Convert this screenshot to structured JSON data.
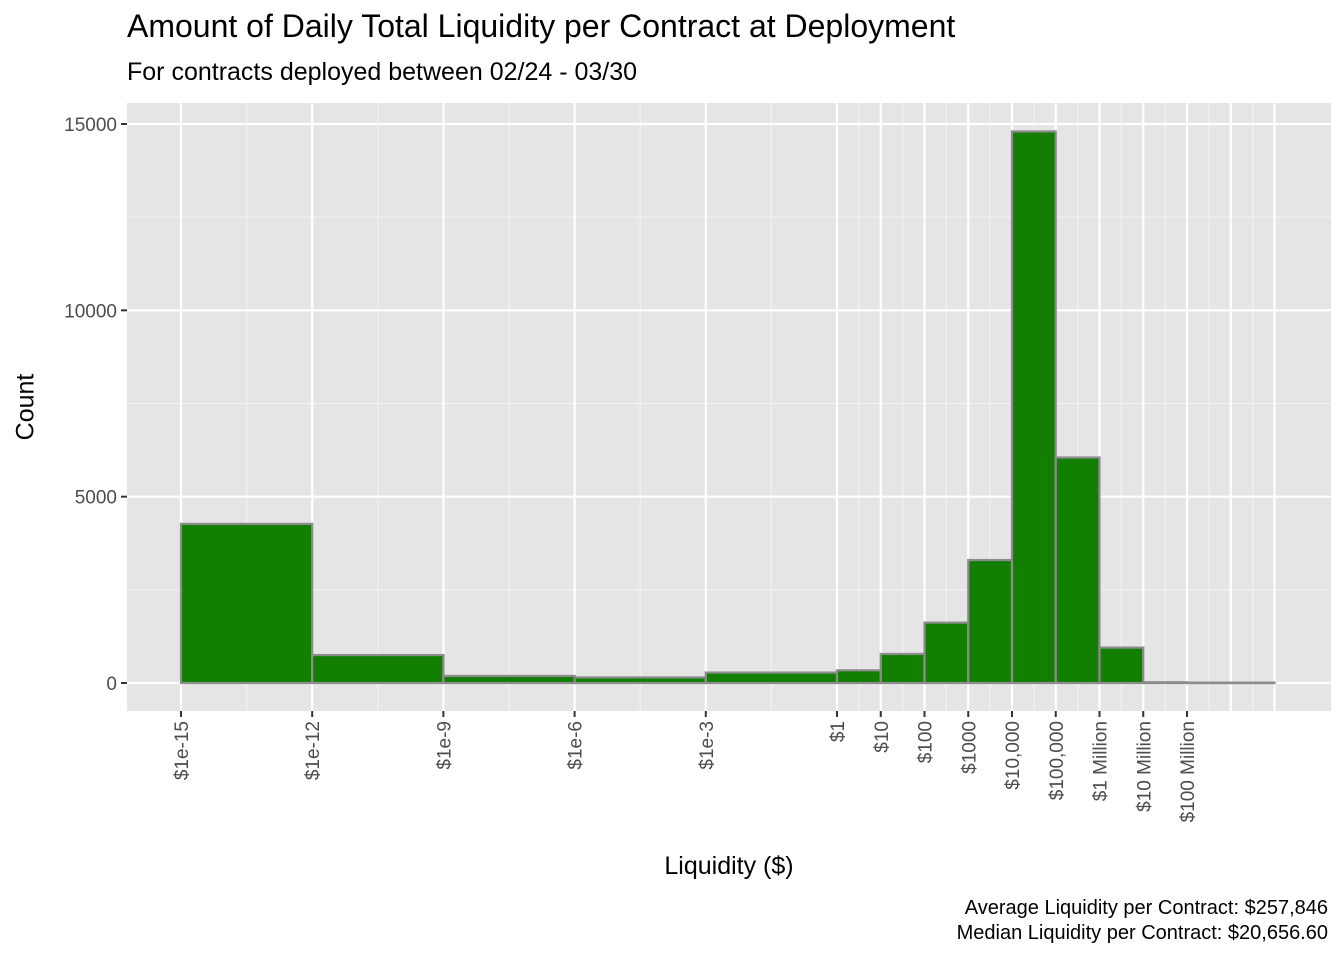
{
  "chart_data": {
    "type": "bar",
    "title": "Amount of Daily Total Liquidity per Contract at Deployment",
    "subtitle": "For contracts deployed between 02/24 - 03/30",
    "xlabel": "Liquidity ($)",
    "ylabel": "Count",
    "x_scale": "log10",
    "ylim": [
      -750,
      15500
    ],
    "y_ticks": [
      0,
      5000,
      10000,
      15000
    ],
    "y_tick_labels": [
      "0",
      "5000",
      "10000",
      "15000"
    ],
    "x_ticks": [
      -15,
      -12,
      -9,
      -6,
      -3,
      0,
      1,
      2,
      3,
      4,
      5,
      6,
      7,
      8
    ],
    "x_tick_labels": [
      "$1e-15",
      "$1e-12",
      "$1e-9",
      "$1e-6",
      "$1e-3",
      "$1",
      "$10",
      "$100",
      "$1000",
      "$10,000",
      "$100,000",
      "$1 Million",
      "$10 Million",
      "$100 Million"
    ],
    "bars": [
      {
        "from": -15,
        "to": -12,
        "value": 4270
      },
      {
        "from": -12,
        "to": -9,
        "value": 750
      },
      {
        "from": -9,
        "to": -6,
        "value": 190
      },
      {
        "from": -6,
        "to": -3,
        "value": 150
      },
      {
        "from": -3,
        "to": 0,
        "value": 280
      },
      {
        "from": 0,
        "to": 1,
        "value": 340
      },
      {
        "from": 1,
        "to": 2,
        "value": 780
      },
      {
        "from": 2,
        "to": 3,
        "value": 1620
      },
      {
        "from": 3,
        "to": 4,
        "value": 3300
      },
      {
        "from": 4,
        "to": 5,
        "value": 14800
      },
      {
        "from": 5,
        "to": 6,
        "value": 6050
      },
      {
        "from": 6,
        "to": 7,
        "value": 950
      },
      {
        "from": 7,
        "to": 8,
        "value": 20
      },
      {
        "from": 8,
        "to": 10,
        "value": 10
      }
    ],
    "bar_fill": "#127f03",
    "bar_outline": "#8c8c8c",
    "panel_background": "#e5e5e5",
    "grid": true,
    "legend": "none"
  },
  "caption": {
    "line1": "Average Liquidity per Contract: $257,846",
    "line2": "Median Liquidity per Contract: $20,656.60"
  }
}
